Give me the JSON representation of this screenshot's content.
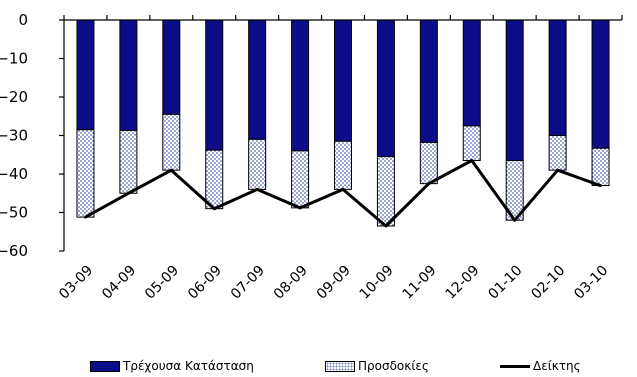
{
  "chart_data": {
    "type": "bar",
    "categories": [
      "03-09",
      "04-09",
      "05-09",
      "06-09",
      "07-09",
      "08-09",
      "09-09",
      "10-09",
      "11-09",
      "12-09",
      "01-10",
      "02-10",
      "03-10"
    ],
    "series": [
      {
        "name": "Τρέχουσα Κατάσταση",
        "kind": "bar",
        "stacked": true,
        "color": "#0d0d8a",
        "values": [
          -28.5,
          -28.7,
          -24.5,
          -33.8,
          -31.0,
          -34.0,
          -31.5,
          -35.5,
          -31.8,
          -27.5,
          -36.5,
          -30.0,
          -33.3
        ]
      },
      {
        "name": "Προσδοκίες",
        "kind": "bar",
        "stacked": true,
        "color": "#ffffff",
        "pattern": "dotted",
        "values": [
          -22.7,
          -16.3,
          -14.5,
          -15.2,
          -13.0,
          -14.8,
          -12.5,
          -18.0,
          -10.7,
          -9.0,
          -15.5,
          -9.0,
          -9.7
        ]
      },
      {
        "name": "Δείκτης",
        "kind": "line",
        "color": "#000000",
        "values": [
          -51.2,
          -45.0,
          -39.0,
          -49.0,
          -44.0,
          -48.8,
          -44.0,
          -53.5,
          -42.5,
          -36.5,
          -52.0,
          -39.0,
          -43.0
        ]
      }
    ],
    "ylim": [
      -60,
      0
    ],
    "yticks": [
      0,
      -10,
      -20,
      -30,
      -40,
      -50,
      -60
    ],
    "ytick_labels": [
      "0",
      "−10",
      "−20",
      "−30",
      "−40",
      "−50",
      "−60"
    ],
    "title": "",
    "xlabel": "",
    "ylabel": "",
    "grid": false,
    "legend_position": "bottom"
  }
}
